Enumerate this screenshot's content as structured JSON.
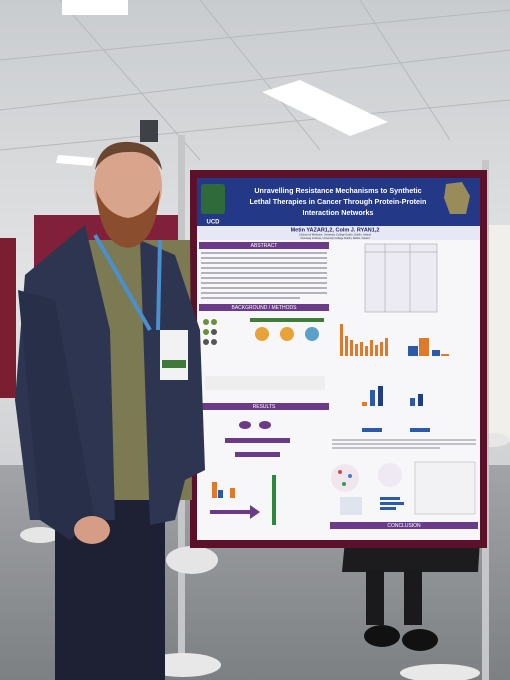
{
  "poster": {
    "logo": "UCD",
    "title_lines": [
      "Unravelling Resistance Mechanisms to Synthetic",
      "Lethal Therapies in Cancer Through Protein-Protein",
      "Interaction Networks"
    ],
    "authors": "Metin YAZAR1,2, Colm J. RYAN1,2",
    "affiliations": [
      "1School of Medicine, University College Dublin, Dublin, Ireland",
      "2Conway Institute, University College Dublin, Dublin, Ireland"
    ],
    "sections": {
      "abstract": "ABSTRACT",
      "background": "BACKGROUND / METHODS",
      "results": "RESULTS",
      "conclusion": "CONCLUSION"
    }
  }
}
